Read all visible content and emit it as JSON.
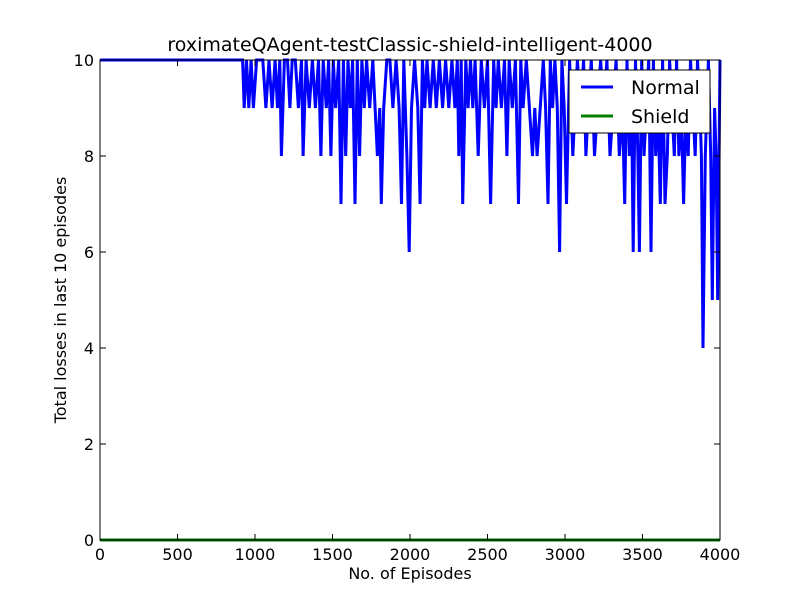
{
  "chart_data": {
    "type": "line",
    "title": "roximateQAgent-testClassic-shield-intelligent-4000",
    "xlabel": "No. of Episodes",
    "ylabel": "Total losses in last 10 episodes",
    "xlim": [
      0,
      4000
    ],
    "ylim": [
      0,
      10
    ],
    "xticks": [
      0,
      500,
      1000,
      1500,
      2000,
      2500,
      3000,
      3500,
      4000
    ],
    "yticks": [
      0,
      2,
      4,
      6,
      8,
      10
    ],
    "grid": false,
    "legend": "top-right",
    "series": [
      {
        "name": "Normal",
        "color": "#0000ff",
        "points": [
          [
            0,
            10
          ],
          [
            900,
            10
          ],
          [
            920,
            10
          ],
          [
            930,
            9
          ],
          [
            945,
            10
          ],
          [
            960,
            9
          ],
          [
            975,
            10
          ],
          [
            990,
            9
          ],
          [
            1010,
            10
          ],
          [
            1030,
            10
          ],
          [
            1050,
            10
          ],
          [
            1070,
            9
          ],
          [
            1090,
            10
          ],
          [
            1110,
            9
          ],
          [
            1130,
            10
          ],
          [
            1145,
            9
          ],
          [
            1160,
            10
          ],
          [
            1170,
            8
          ],
          [
            1190,
            10
          ],
          [
            1210,
            10
          ],
          [
            1225,
            9
          ],
          [
            1240,
            10
          ],
          [
            1260,
            10
          ],
          [
            1280,
            9
          ],
          [
            1300,
            10
          ],
          [
            1310,
            8
          ],
          [
            1330,
            10
          ],
          [
            1350,
            9
          ],
          [
            1370,
            10
          ],
          [
            1390,
            9
          ],
          [
            1410,
            10
          ],
          [
            1425,
            8
          ],
          [
            1440,
            10
          ],
          [
            1460,
            9
          ],
          [
            1475,
            10
          ],
          [
            1490,
            8
          ],
          [
            1505,
            10
          ],
          [
            1520,
            9
          ],
          [
            1540,
            10
          ],
          [
            1555,
            7
          ],
          [
            1570,
            10
          ],
          [
            1585,
            8
          ],
          [
            1600,
            10
          ],
          [
            1615,
            9
          ],
          [
            1630,
            10
          ],
          [
            1645,
            7
          ],
          [
            1660,
            10
          ],
          [
            1675,
            8
          ],
          [
            1690,
            10
          ],
          [
            1705,
            9
          ],
          [
            1720,
            10
          ],
          [
            1740,
            9
          ],
          [
            1760,
            10
          ],
          [
            1775,
            9
          ],
          [
            1790,
            8
          ],
          [
            1805,
            9
          ],
          [
            1815,
            7
          ],
          [
            1830,
            9
          ],
          [
            1850,
            10
          ],
          [
            1870,
            10
          ],
          [
            1890,
            9
          ],
          [
            1910,
            10
          ],
          [
            1930,
            9
          ],
          [
            1945,
            7
          ],
          [
            1960,
            10
          ],
          [
            1980,
            8
          ],
          [
            1995,
            6
          ],
          [
            2010,
            9
          ],
          [
            2030,
            10
          ],
          [
            2050,
            9
          ],
          [
            2065,
            7
          ],
          [
            2080,
            10
          ],
          [
            2095,
            9
          ],
          [
            2110,
            10
          ],
          [
            2130,
            9
          ],
          [
            2150,
            10
          ],
          [
            2170,
            9
          ],
          [
            2190,
            10
          ],
          [
            2210,
            9
          ],
          [
            2230,
            10
          ],
          [
            2250,
            9
          ],
          [
            2270,
            10
          ],
          [
            2290,
            9
          ],
          [
            2305,
            10
          ],
          [
            2315,
            8
          ],
          [
            2330,
            10
          ],
          [
            2340,
            7
          ],
          [
            2360,
            10
          ],
          [
            2375,
            9
          ],
          [
            2390,
            10
          ],
          [
            2405,
            9
          ],
          [
            2420,
            10
          ],
          [
            2440,
            8
          ],
          [
            2460,
            10
          ],
          [
            2480,
            9
          ],
          [
            2500,
            10
          ],
          [
            2520,
            7
          ],
          [
            2540,
            10
          ],
          [
            2555,
            9
          ],
          [
            2570,
            10
          ],
          [
            2590,
            9
          ],
          [
            2610,
            10
          ],
          [
            2625,
            8
          ],
          [
            2640,
            10
          ],
          [
            2660,
            9
          ],
          [
            2680,
            10
          ],
          [
            2700,
            7
          ],
          [
            2715,
            10
          ],
          [
            2730,
            9
          ],
          [
            2750,
            10
          ],
          [
            2770,
            9
          ],
          [
            2790,
            8
          ],
          [
            2805,
            9
          ],
          [
            2820,
            8
          ],
          [
            2840,
            9
          ],
          [
            2860,
            10
          ],
          [
            2875,
            9
          ],
          [
            2890,
            7
          ],
          [
            2905,
            10
          ],
          [
            2920,
            9
          ],
          [
            2935,
            10
          ],
          [
            2950,
            9
          ],
          [
            2965,
            6
          ],
          [
            2980,
            10
          ],
          [
            2995,
            9
          ],
          [
            3010,
            7
          ],
          [
            3030,
            10
          ],
          [
            3050,
            8
          ],
          [
            3065,
            9
          ],
          [
            3080,
            10
          ],
          [
            3100,
            9
          ],
          [
            3120,
            10
          ],
          [
            3135,
            8
          ],
          [
            3150,
            9
          ],
          [
            3170,
            10
          ],
          [
            3190,
            8
          ],
          [
            3210,
            9
          ],
          [
            3230,
            10
          ],
          [
            3250,
            9
          ],
          [
            3270,
            10
          ],
          [
            3290,
            8
          ],
          [
            3310,
            9
          ],
          [
            3330,
            10
          ],
          [
            3350,
            8
          ],
          [
            3370,
            9
          ],
          [
            3385,
            7
          ],
          [
            3400,
            10
          ],
          [
            3415,
            8
          ],
          [
            3430,
            9
          ],
          [
            3440,
            6
          ],
          [
            3455,
            10
          ],
          [
            3470,
            8
          ],
          [
            3480,
            6
          ],
          [
            3495,
            10
          ],
          [
            3510,
            8
          ],
          [
            3525,
            9
          ],
          [
            3540,
            10
          ],
          [
            3555,
            6
          ],
          [
            3570,
            10
          ],
          [
            3585,
            8
          ],
          [
            3600,
            9
          ],
          [
            3615,
            7
          ],
          [
            3630,
            10
          ],
          [
            3645,
            7
          ],
          [
            3660,
            8
          ],
          [
            3675,
            10
          ],
          [
            3690,
            9
          ],
          [
            3705,
            8
          ],
          [
            3720,
            10
          ],
          [
            3735,
            8
          ],
          [
            3750,
            9
          ],
          [
            3765,
            7
          ],
          [
            3780,
            9
          ],
          [
            3795,
            8
          ],
          [
            3810,
            10
          ],
          [
            3825,
            9
          ],
          [
            3840,
            8
          ],
          [
            3855,
            10
          ],
          [
            3870,
            9
          ],
          [
            3880,
            8
          ],
          [
            3890,
            4
          ],
          [
            3905,
            8
          ],
          [
            3915,
            9
          ],
          [
            3925,
            10
          ],
          [
            3940,
            8
          ],
          [
            3950,
            5
          ],
          [
            3965,
            9
          ],
          [
            3975,
            8
          ],
          [
            3985,
            5
          ],
          [
            4000,
            10
          ]
        ]
      },
      {
        "name": "Shield",
        "color": "#008000",
        "points": [
          [
            0,
            0
          ],
          [
            4000,
            0
          ]
        ]
      }
    ]
  }
}
